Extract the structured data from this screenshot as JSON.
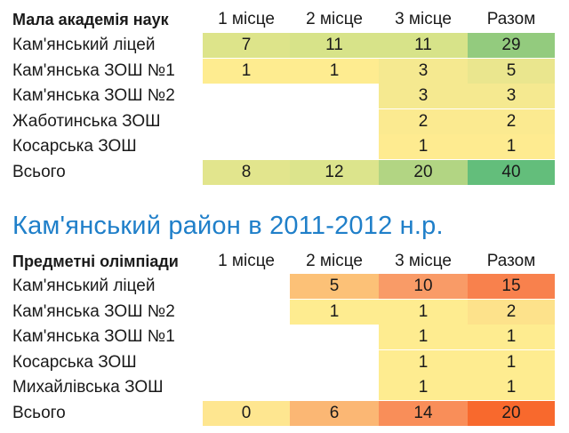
{
  "table1": {
    "header": [
      "Мала академія наук",
      "1 місце",
      "2 місце",
      "3 місце",
      "Разом"
    ],
    "rows": [
      {
        "label": "Кам'янський ліцей",
        "v1": "7",
        "v2": "11",
        "v3": "11",
        "total": "29"
      },
      {
        "label": "Кам'янська ЗОШ №1",
        "v1": "1",
        "v2": "1",
        "v3": "3",
        "total": "5"
      },
      {
        "label": "Кам'янська ЗОШ №2",
        "v1": "",
        "v2": "",
        "v3": "3",
        "total": "3"
      },
      {
        "label": "Жаботинська ЗОШ",
        "v1": "",
        "v2": "",
        "v3": "2",
        "total": "2"
      },
      {
        "label": "Косарська ЗОШ",
        "v1": "",
        "v2": "",
        "v3": "1",
        "total": "1"
      },
      {
        "label": "Всього",
        "v1": "8",
        "v2": "12",
        "v3": "20",
        "total": "40"
      }
    ],
    "colors": [
      [
        "#dde48a",
        "#d7e389",
        "#d7e389",
        "#93cb7e"
      ],
      [
        "#feec90",
        "#feec90",
        "#f5e990",
        "#eae68e"
      ],
      [
        "",
        "",
        "#f5e990",
        "#f5e990"
      ],
      [
        "",
        "",
        "#fbea90",
        "#fbea90"
      ],
      [
        "",
        "",
        "#feeb90",
        "#feeb90"
      ],
      [
        "#e2e58d",
        "#dce48c",
        "#b2d583",
        "#63be7b"
      ]
    ]
  },
  "heading": "Кам'янський  район в 2011-2012 н.р.",
  "table2": {
    "header": [
      "Предметні олімпіади",
      "1 місце",
      "2 місце",
      "3 місце",
      "Разом"
    ],
    "rows": [
      {
        "label": "Кам'янський ліцей",
        "v1": "",
        "v2": "5",
        "v3": "10",
        "total": "15"
      },
      {
        "label": "Кам'янська ЗОШ №2",
        "v1": "",
        "v2": "1",
        "v3": "1",
        "total": "2"
      },
      {
        "label": "Кам'янська ЗОШ №1",
        "v1": "",
        "v2": "",
        "v3": "1",
        "total": "1"
      },
      {
        "label": "Косарська ЗОШ",
        "v1": "",
        "v2": "",
        "v3": "1",
        "total": "1"
      },
      {
        "label": "Михайлівська ЗОШ",
        "v1": "",
        "v2": "",
        "v3": "1",
        "total": "1"
      },
      {
        "label": "Всього",
        "v1": "0",
        "v2": "6",
        "v3": "14",
        "total": "20"
      }
    ],
    "colors": [
      [
        "",
        "#fcc177",
        "#f99b67",
        "#f8814d"
      ],
      [
        "",
        "#feec90",
        "#feec90",
        "#fde28b"
      ],
      [
        "",
        "",
        "#feec90",
        "#feec90"
      ],
      [
        "",
        "",
        "#feec90",
        "#feec90"
      ],
      [
        "",
        "",
        "#feec90",
        "#feec90"
      ],
      [
        "#fee690",
        "#fbb774",
        "#f98e59",
        "#f8692d"
      ]
    ]
  }
}
